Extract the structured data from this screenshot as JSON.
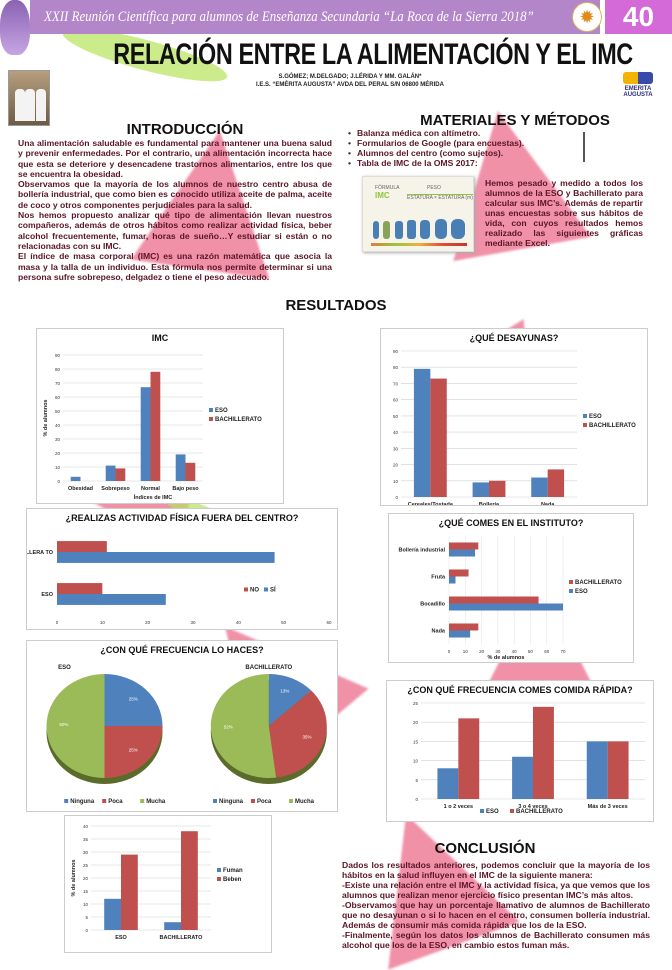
{
  "header": {
    "event": "XXII Reunión Científica para alumnos de Enseñanza Secundaria “La Roca de la Sierra  2018”",
    "poster_number": "40"
  },
  "title": "RELACIÓN ENTRE LA ALIMENTACIÓN Y EL IMC",
  "authors": "S.GÓMEZ; M.DELGADO; J.LÉRIDA Y MM. GALÁN*",
  "affiliation": "I.E.S. “EMÉRITA AUGUSTA” AVDA  DEL PERAL S/N 06800 MÉRIDA",
  "school_logo": "EMERITA AUGUSTA",
  "intro": {
    "heading": "INTRODUCCIÓN",
    "paragraphs": [
      "Una alimentación saludable es fundamental para mantener una buena salud y prevenir enfermedades. Por el contrario, una alimentación incorrecta hace que esta se deteriore y desencadene trastornos alimentarios, entre los que se encuentra la obesidad.",
      "Observamos que la mayoría  de los alumnos de nuestro centro abusa de bollería industrial, que como bien es conocido utiliza  aceite de palma, aceite de coco y otros componentes perjudiciales para la salud.",
      "Nos hemos propuesto analizar qué tipo de alimentación llevan nuestros compañeros, además de otros hábitos como realizar  actividad física, beber alcohol frecuentemente, fumar, horas de sueño…Y estudiar si están o no relacionadas con su IMC.",
      "El índice de masa corporal (IMC) es una razón matemática que asocia la masa y la talla de un individuo. Esta fórmula nos permite determinar si una persona sufre sobrepeso, delgadez o tiene el peso adecuado."
    ]
  },
  "methods": {
    "heading": "MATERIALES Y MÉTODOS",
    "bullets": [
      "Balanza médica con altímetro.",
      "Formularios de Google (para encuestas).",
      "Alumnos del centro (como sujetos).",
      "Tabla de IMC de la OMS 2017:"
    ],
    "formula_label": "FÓRMULA",
    "formula_name": "IMC",
    "formula_num": "PESO",
    "formula_den": "ESTATURA × ESTATURA (m)",
    "text": "Hemos pesado y medido a todos los alumnos de la ESO y Bachillerato para calcular sus IMC’s. Además de repartir unas encuestas sobre sus hábitos de vida, con cuyos resultados hemos realizado las siguientes gráficas mediante Excel."
  },
  "results_heading": "RESULTADOS",
  "conclusion": {
    "heading": "CONCLUSIÓN",
    "paragraphs": [
      "Dados los resultados anteriores, podemos concluir que la mayoría de los hábitos en la salud influyen en el IMC de la siguiente manera:",
      "-Existe una relación entre el IMC y la actividad física, ya que vemos que los alumnos que realizan menor ejercicio físico presentan IMC’s más altos.",
      "-Observamos que hay un porcentaje llamativo de alumnos de Bachillerato que no desayunan o si lo hacen en el centro, consumen bollería industrial. Además de consumir más comida rápida que los de la ESO.",
      "-Finalmente, según los datos los alumnos de Bachillerato consumen más alcohol que los de la ESO, en cambio estos fuman más."
    ]
  },
  "colors": {
    "eso": "#4f81bd",
    "bach": "#c0504d",
    "green": "#9bbb59",
    "header": "#b385c9",
    "number": "#d36ad8",
    "text": "#5a1526"
  },
  "chart_data": [
    {
      "type": "bar",
      "orientation": "vertical",
      "title": "IMC",
      "xlabel": "Índices de IMC",
      "ylabel": "% de alumnos",
      "ylim": [
        0,
        90
      ],
      "ytick": 10,
      "categories": [
        "Obesidad",
        "Sobrepeso",
        "Normal",
        "Bajo peso"
      ],
      "series": [
        {
          "name": "ESO",
          "values": [
            3,
            11,
            67,
            19
          ]
        },
        {
          "name": "BACHILLERATO",
          "values": [
            0,
            9,
            78,
            13
          ]
        }
      ],
      "legend": "right"
    },
    {
      "type": "bar",
      "orientation": "vertical",
      "title": "¿QUÉ DESAYUNAS?",
      "xlabel": "",
      "ylabel": "",
      "ylim": [
        0,
        90
      ],
      "ytick": 10,
      "categories": [
        "Cereales/Tostada",
        "Bollería",
        "Nada"
      ],
      "series": [
        {
          "name": "ESO",
          "values": [
            79,
            9,
            12
          ]
        },
        {
          "name": "BACHILLERATO",
          "values": [
            73,
            10,
            17
          ]
        }
      ],
      "legend": "right"
    },
    {
      "type": "bar",
      "orientation": "horizontal",
      "title": "¿REALIZAS ACTIVIDAD FÍSICA FUERA DEL CENTRO?",
      "xlabel": "",
      "ylabel": "",
      "xlim": [
        0,
        60
      ],
      "xtick": 10,
      "categories": [
        "BACHILLERATO",
        "ESO"
      ],
      "category_display": [
        "BACHI LLERA TO",
        "ESO"
      ],
      "series": [
        {
          "name": "NO",
          "values": [
            11,
            10
          ]
        },
        {
          "name": "SÍ",
          "values": [
            48,
            24
          ]
        }
      ],
      "legend": "inside-right"
    },
    {
      "type": "bar",
      "orientation": "horizontal",
      "title": "¿QUÉ COMES EN EL INSTITUTO?",
      "xlabel": "% de alumnos",
      "ylabel": "",
      "xlim": [
        0,
        70
      ],
      "xtick": 10,
      "categories": [
        "Bollería industrial",
        "Fruta",
        "Bocadillo",
        "Nada"
      ],
      "series": [
        {
          "name": "BACHILLERATO",
          "values": [
            18,
            12,
            55,
            18
          ]
        },
        {
          "name": "ESO",
          "values": [
            16,
            4,
            70,
            13
          ]
        }
      ],
      "legend": "right"
    },
    {
      "type": "pie",
      "title": "¿CON QUÉ FRECUENCIA LO HACES?",
      "categories": [
        "Ninguna",
        "Poca",
        "Mucha"
      ],
      "pies": [
        {
          "name": "ESO",
          "values": [
            25,
            25,
            50
          ],
          "labels": [
            "25%",
            "25%",
            "50%"
          ]
        },
        {
          "name": "BACHILLERATO",
          "values": [
            13,
            35,
            52
          ],
          "labels": [
            "13%",
            "35%",
            "52%"
          ]
        }
      ],
      "legend": "bottom"
    },
    {
      "type": "bar",
      "orientation": "vertical",
      "title": "¿CON QUÉ FRECUENCIA COMES COMIDA RÁPIDA?",
      "xlabel": "",
      "ylabel": "",
      "ylim": [
        0,
        25
      ],
      "ytick": 5,
      "categories": [
        "1 o 2 veces",
        "3 o 4 veces",
        "Más de 3 veces"
      ],
      "series": [
        {
          "name": "ESO",
          "values": [
            8,
            11,
            15
          ]
        },
        {
          "name": "BACHILLERATO",
          "values": [
            21,
            24,
            15
          ]
        }
      ],
      "legend": "bottom"
    },
    {
      "type": "bar",
      "orientation": "vertical",
      "title": "",
      "xlabel": "",
      "ylabel": "% de alumnos",
      "ylim": [
        0,
        40
      ],
      "ytick": 5,
      "categories": [
        "ESO",
        "BACHILLERATO"
      ],
      "series": [
        {
          "name": "Fuman",
          "values": [
            12,
            3
          ]
        },
        {
          "name": "Beben",
          "values": [
            29,
            38
          ]
        }
      ],
      "legend": "right"
    }
  ]
}
